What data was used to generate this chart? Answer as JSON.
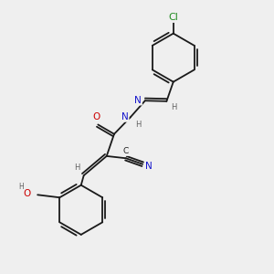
{
  "bg_color": "#efefef",
  "bond_color": "#1a1a1a",
  "atom_colors": {
    "C": "#1a1a1a",
    "N": "#1414cc",
    "O": "#cc0000",
    "Cl": "#228B22",
    "H": "#606060"
  },
  "font_size": 7.0,
  "lw": 1.3
}
